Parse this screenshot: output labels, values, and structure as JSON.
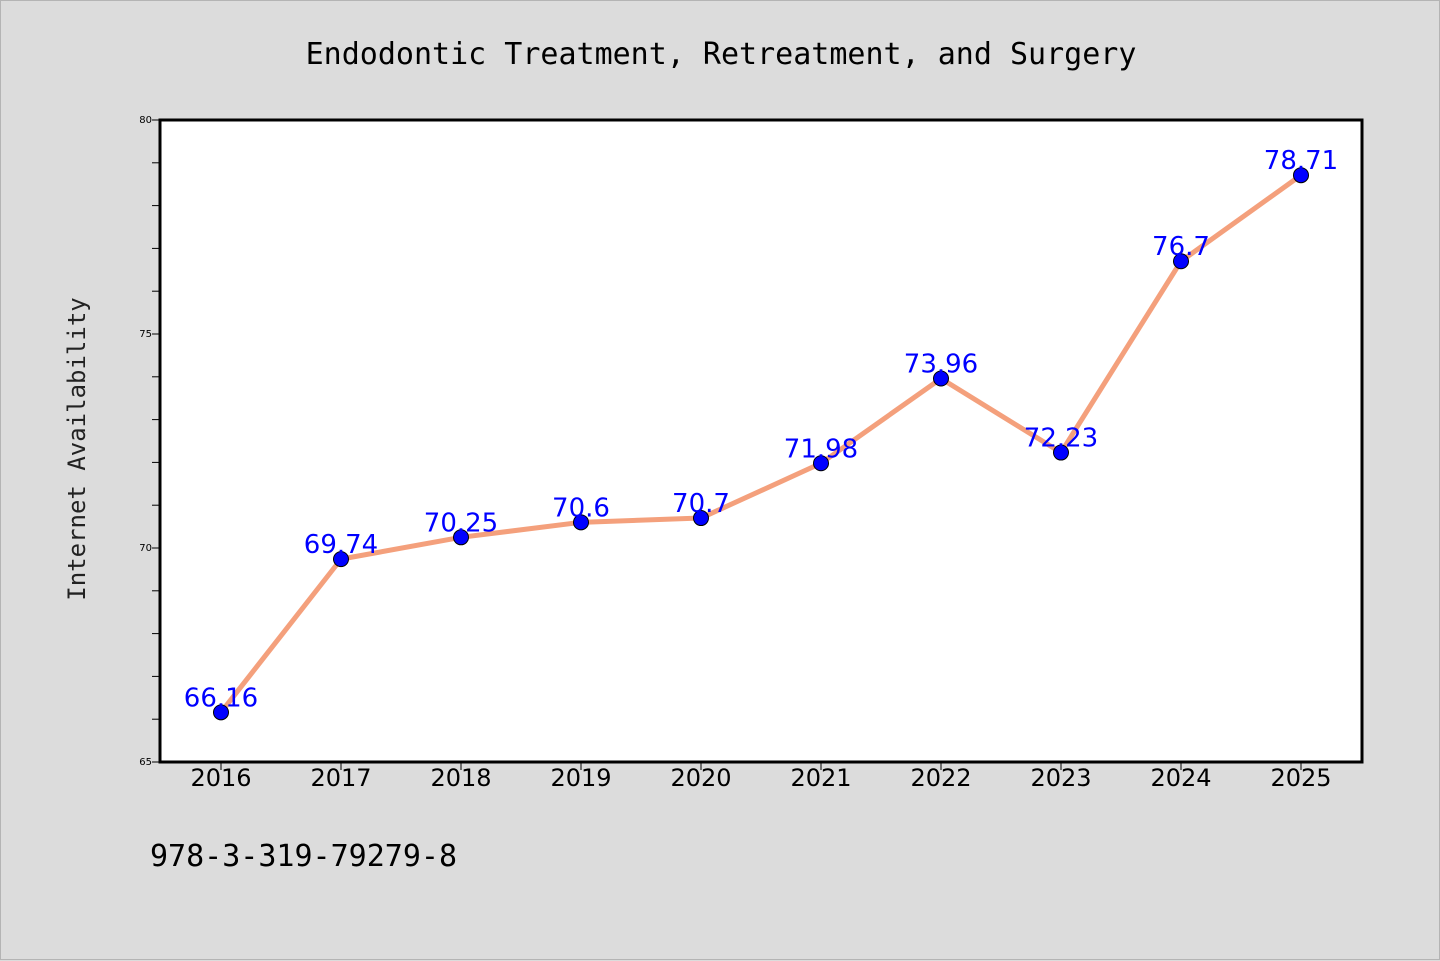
{
  "chart_data": {
    "type": "line",
    "title": "Endodontic Treatment, Retreatment, and Surgery",
    "xlabel": "",
    "ylabel": "Internet Availability",
    "categories": [
      "2016",
      "2017",
      "2018",
      "2019",
      "2020",
      "2021",
      "2022",
      "2023",
      "2024",
      "2025"
    ],
    "series": [
      {
        "values": [
          66.16,
          69.74,
          70.25,
          70.6,
          70.7,
          71.98,
          73.96,
          72.23,
          76.7,
          78.71
        ],
        "labels": [
          "66.16",
          "69.74",
          "70.25",
          "70.6",
          "70.7",
          "71.98",
          "73.96",
          "72.23",
          "76.7",
          "78.71"
        ]
      }
    ],
    "ylim": [
      65,
      80
    ],
    "yticks": [
      65,
      70,
      75,
      80
    ],
    "ytick_labels": [
      "65",
      "70",
      "75",
      "80"
    ],
    "grid": false,
    "legend": "none",
    "colors": {
      "line": "#f4a07c",
      "marker": "#0000ff",
      "marker_edge": "#000000",
      "data_label": "#0000ff",
      "plot_background": "#ffffff",
      "figure_background": "#dcdcdc"
    }
  },
  "footnote": "978-3-319-79279-8"
}
